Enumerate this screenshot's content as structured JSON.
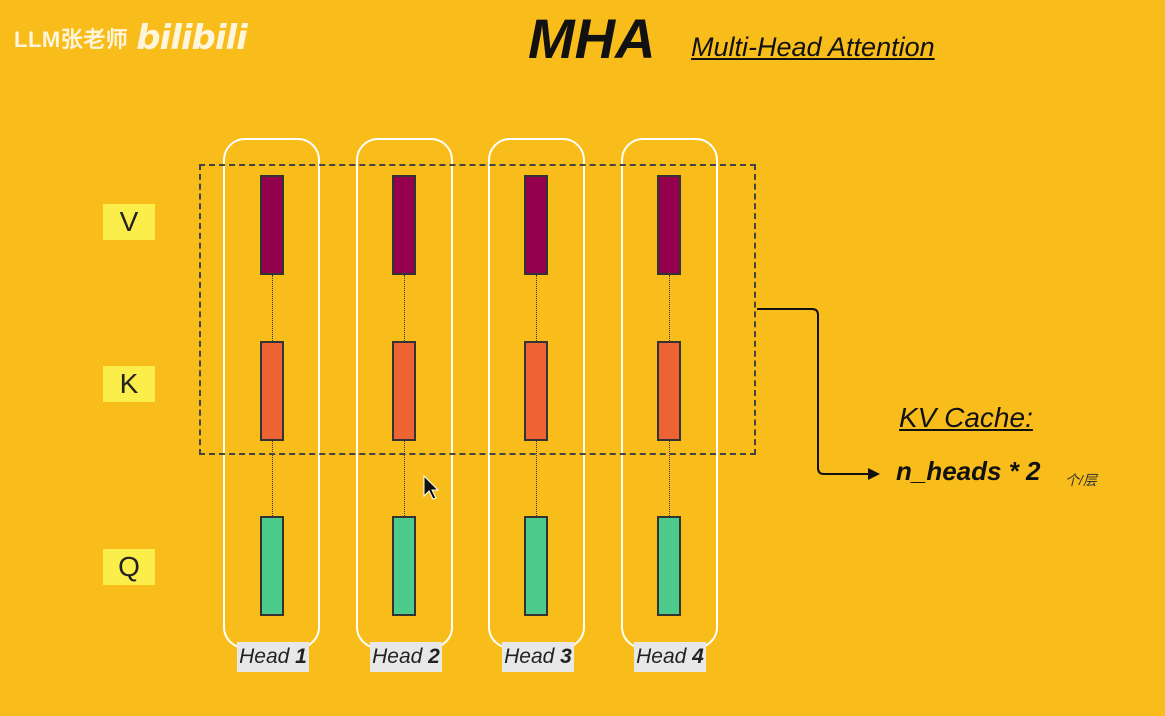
{
  "watermark": {
    "author": "LLM张老师",
    "brand": "bilibili"
  },
  "title": "MHA",
  "subtitle": "Multi-Head Attention",
  "row_labels": [
    "V",
    "K",
    "Q"
  ],
  "heads": [
    {
      "prefix": "Head",
      "number": "1"
    },
    {
      "prefix": "Head",
      "number": "2"
    },
    {
      "prefix": "Head",
      "number": "3"
    },
    {
      "prefix": "Head",
      "number": "4"
    }
  ],
  "kv_cache": {
    "title": "KV Cache:",
    "formula": "n_heads * 2",
    "unit": "个/层"
  },
  "colors": {
    "background": "#f9bd1b",
    "v_bar": "#94004e",
    "k_bar": "#ee6334",
    "q_bar": "#4ccb8d",
    "label_bg": "#fbed4a"
  }
}
